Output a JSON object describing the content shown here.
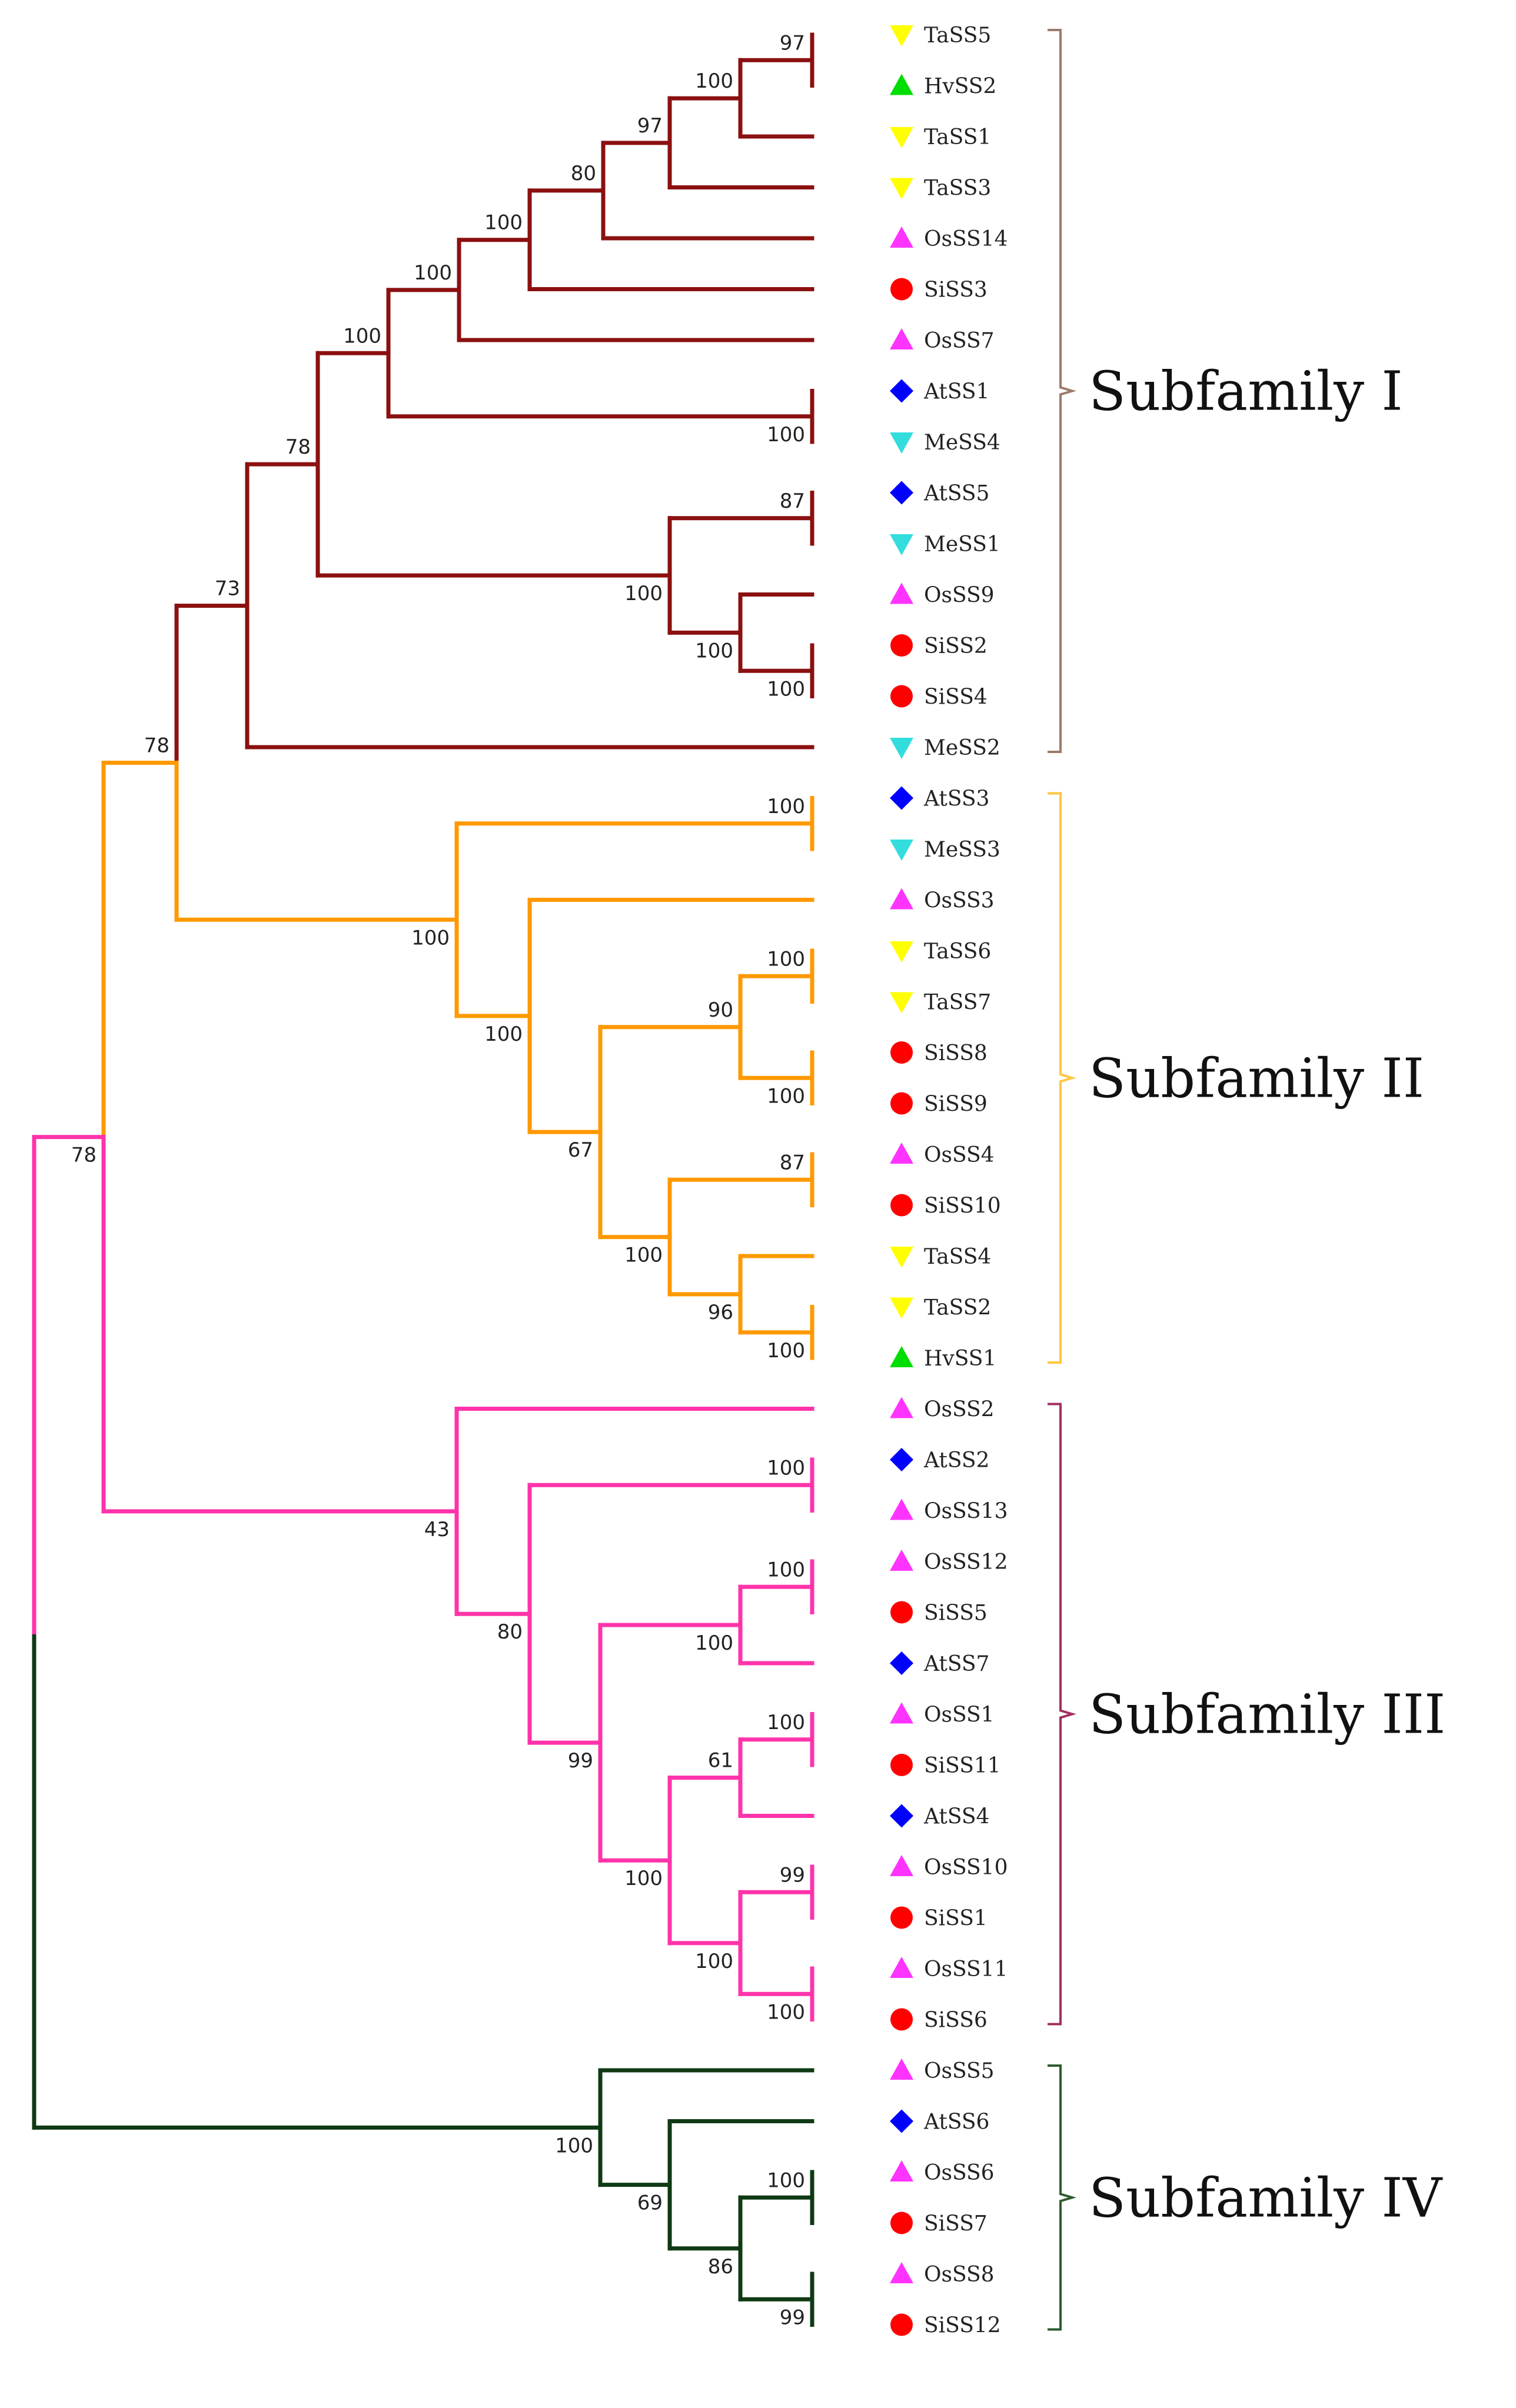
{
  "colors": {
    "subfamily_I": "#8b1010",
    "subfamily_II": "#ff9900",
    "subfamily_III": "#ff33aa",
    "subfamily_IV": "#0f3a14",
    "bracket_I": "#9b7b6b",
    "bracket_II": "#ffc640",
    "bracket_III": "#a03060",
    "bracket_IV": "#2f5a2f",
    "species": {
      "Ta": "#ffff00",
      "Hv": "#00dd00",
      "Os": "#ff33ff",
      "Si": "#ff0000",
      "At": "#0000ff",
      "Me": "#33dddd"
    }
  },
  "species_markers": {
    "Ta": "triangle-down",
    "Hv": "triangle-up",
    "Os": "triangle-up",
    "Si": "circle",
    "At": "diamond",
    "Me": "triangle-down"
  },
  "leaves": [
    {
      "label": "TaSS5",
      "species": "Ta"
    },
    {
      "label": "HvSS2",
      "species": "Hv"
    },
    {
      "label": "TaSS1",
      "species": "Ta"
    },
    {
      "label": "TaSS3",
      "species": "Ta"
    },
    {
      "label": "OsSS14",
      "species": "Os"
    },
    {
      "label": "SiSS3",
      "species": "Si"
    },
    {
      "label": "OsSS7",
      "species": "Os"
    },
    {
      "label": "AtSS1",
      "species": "At"
    },
    {
      "label": "MeSS4",
      "species": "Me"
    },
    {
      "label": "AtSS5",
      "species": "At"
    },
    {
      "label": "MeSS1",
      "species": "Me"
    },
    {
      "label": "OsSS9",
      "species": "Os"
    },
    {
      "label": "SiSS2",
      "species": "Si"
    },
    {
      "label": "SiSS4",
      "species": "Si"
    },
    {
      "label": "MeSS2",
      "species": "Me"
    },
    {
      "label": "AtSS3",
      "species": "At"
    },
    {
      "label": "MeSS3",
      "species": "Me"
    },
    {
      "label": "OsSS3",
      "species": "Os"
    },
    {
      "label": "TaSS6",
      "species": "Ta"
    },
    {
      "label": "TaSS7",
      "species": "Ta"
    },
    {
      "label": "SiSS8",
      "species": "Si"
    },
    {
      "label": "SiSS9",
      "species": "Si"
    },
    {
      "label": "OsSS4",
      "species": "Os"
    },
    {
      "label": "SiSS10",
      "species": "Si"
    },
    {
      "label": "TaSS4",
      "species": "Ta"
    },
    {
      "label": "TaSS2",
      "species": "Ta"
    },
    {
      "label": "HvSS1",
      "species": "Hv"
    },
    {
      "label": "OsSS2",
      "species": "Os"
    },
    {
      "label": "AtSS2",
      "species": "At"
    },
    {
      "label": "OsSS13",
      "species": "Os"
    },
    {
      "label": "OsSS12",
      "species": "Os"
    },
    {
      "label": "SiSS5",
      "species": "Si"
    },
    {
      "label": "AtSS7",
      "species": "At"
    },
    {
      "label": "OsSS1",
      "species": "Os"
    },
    {
      "label": "SiSS11",
      "species": "Si"
    },
    {
      "label": "AtSS4",
      "species": "At"
    },
    {
      "label": "OsSS10",
      "species": "Os"
    },
    {
      "label": "SiSS1",
      "species": "Si"
    },
    {
      "label": "OsSS11",
      "species": "Os"
    },
    {
      "label": "SiSS6",
      "species": "Si"
    },
    {
      "label": "OsSS5",
      "species": "Os"
    },
    {
      "label": "AtSS6",
      "species": "At"
    },
    {
      "label": "OsSS6",
      "species": "Os"
    },
    {
      "label": "SiSS7",
      "species": "Si"
    },
    {
      "label": "OsSS8",
      "species": "Os"
    },
    {
      "label": "SiSS12",
      "species": "Si"
    }
  ],
  "tree": {
    "id": "root",
    "children": [
      {
        "id": "n78a",
        "bootstrap": "78",
        "group": "III",
        "children": [
          {
            "id": "n78b",
            "bootstrap": "78",
            "group": "II",
            "children": [
              {
                "id": "n73",
                "bootstrap": "73",
                "group": "I",
                "children": [
                  {
                    "id": "n78c",
                    "bootstrap": "78",
                    "group": "I",
                    "children": [
                      {
                        "id": "n100a",
                        "bootstrap": "100",
                        "group": "I",
                        "children": [
                          {
                            "id": "n100b",
                            "bootstrap": "100",
                            "group": "I",
                            "children": [
                              {
                                "id": "n100c",
                                "bootstrap": "100",
                                "group": "I",
                                "children": [
                                  {
                                    "id": "n80",
                                    "bootstrap": "80",
                                    "group": "I",
                                    "children": [
                                      {
                                        "id": "n97a",
                                        "bootstrap": "97",
                                        "group": "I",
                                        "children": [
                                          {
                                            "id": "n100d",
                                            "bootstrap": "100",
                                            "group": "I",
                                            "children": [
                                              {
                                                "id": "n97b",
                                                "bootstrap": "97",
                                                "group": "I",
                                                "children": [
                                                  {
                                                    "leaf": 0
                                                  },
                                                  {
                                                    "leaf": 1
                                                  }
                                                ]
                                              },
                                              {
                                                "leaf": 2
                                              }
                                            ]
                                          },
                                          {
                                            "leaf": 3
                                          }
                                        ]
                                      },
                                      {
                                        "leaf": 4
                                      }
                                    ]
                                  },
                                  {
                                    "leaf": 5
                                  }
                                ]
                              },
                              {
                                "leaf": 6
                              }
                            ]
                          },
                          {
                            "id": "n100e",
                            "bootstrap": "100",
                            "group": "I",
                            "children": [
                              {
                                "leaf": 7
                              },
                              {
                                "leaf": 8
                              }
                            ]
                          }
                        ]
                      },
                      {
                        "id": "n100f",
                        "bootstrap": "100",
                        "group": "I",
                        "children": [
                          {
                            "id": "n87a",
                            "bootstrap": "87",
                            "group": "I",
                            "children": [
                              {
                                "leaf": 9
                              },
                              {
                                "leaf": 10
                              }
                            ]
                          },
                          {
                            "id": "n100g",
                            "bootstrap": "100",
                            "group": "I",
                            "children": [
                              {
                                "leaf": 11
                              },
                              {
                                "id": "n100h",
                                "bootstrap": "100",
                                "group": "I",
                                "children": [
                                  {
                                    "leaf": 12
                                  },
                                  {
                                    "leaf": 13
                                  }
                                ]
                              }
                            ]
                          }
                        ]
                      }
                    ]
                  },
                  {
                    "leaf": 14
                  }
                ]
              },
              {
                "id": "n100i",
                "bootstrap": "100",
                "group": "II",
                "children": [
                  {
                    "id": "n100j",
                    "bootstrap": "100",
                    "group": "II",
                    "children": [
                      {
                        "leaf": 15
                      },
                      {
                        "leaf": 16
                      }
                    ]
                  },
                  {
                    "id": "n100k",
                    "bootstrap": "100",
                    "group": "II",
                    "children": [
                      {
                        "leaf": 17
                      },
                      {
                        "id": "n67",
                        "bootstrap": "67",
                        "group": "II",
                        "children": [
                          {
                            "id": "n90",
                            "bootstrap": "90",
                            "group": "II",
                            "children": [
                              {
                                "id": "n100l",
                                "bootstrap": "100",
                                "group": "II",
                                "children": [
                                  {
                                    "leaf": 18
                                  },
                                  {
                                    "leaf": 19
                                  }
                                ]
                              },
                              {
                                "id": "n100m",
                                "bootstrap": "100",
                                "group": "II",
                                "children": [
                                  {
                                    "leaf": 20
                                  },
                                  {
                                    "leaf": 21
                                  }
                                ]
                              }
                            ]
                          },
                          {
                            "id": "n100n",
                            "bootstrap": "100",
                            "group": "II",
                            "children": [
                              {
                                "id": "n87b",
                                "bootstrap": "87",
                                "group": "II",
                                "children": [
                                  {
                                    "leaf": 22
                                  },
                                  {
                                    "leaf": 23
                                  }
                                ]
                              },
                              {
                                "id": "n96",
                                "bootstrap": "96",
                                "group": "II",
                                "children": [
                                  {
                                    "leaf": 24
                                  },
                                  {
                                    "id": "n100o",
                                    "bootstrap": "100",
                                    "group": "II",
                                    "children": [
                                      {
                                        "leaf": 25
                                      },
                                      {
                                        "leaf": 26
                                      }
                                    ]
                                  }
                                ]
                              }
                            ]
                          }
                        ]
                      }
                    ]
                  }
                ]
              }
            ]
          },
          {
            "id": "n43",
            "bootstrap": "43",
            "group": "III",
            "children": [
              {
                "leaf": 27
              },
              {
                "id": "n80b",
                "bootstrap": "80",
                "group": "III",
                "children": [
                  {
                    "id": "n100p",
                    "bootstrap": "100",
                    "group": "III",
                    "children": [
                      {
                        "leaf": 28
                      },
                      {
                        "leaf": 29
                      }
                    ]
                  },
                  {
                    "id": "n99a",
                    "bootstrap": "99",
                    "group": "III",
                    "children": [
                      {
                        "id": "n100q",
                        "bootstrap": "100",
                        "group": "III",
                        "children": [
                          {
                            "id": "n100r",
                            "bootstrap": "100",
                            "group": "III",
                            "children": [
                              {
                                "leaf": 30
                              },
                              {
                                "leaf": 31
                              }
                            ]
                          },
                          {
                            "leaf": 32
                          }
                        ]
                      },
                      {
                        "id": "n100s",
                        "bootstrap": "100",
                        "group": "III",
                        "children": [
                          {
                            "id": "n61",
                            "bootstrap": "61",
                            "group": "III",
                            "children": [
                              {
                                "id": "n100t",
                                "bootstrap": "100",
                                "group": "III",
                                "children": [
                                  {
                                    "leaf": 33
                                  },
                                  {
                                    "leaf": 34
                                  }
                                ]
                              },
                              {
                                "leaf": 35
                              }
                            ]
                          },
                          {
                            "id": "n100u",
                            "bootstrap": "100",
                            "group": "III",
                            "children": [
                              {
                                "id": "n99b",
                                "bootstrap": "99",
                                "group": "III",
                                "children": [
                                  {
                                    "leaf": 36
                                  },
                                  {
                                    "leaf": 37
                                  }
                                ]
                              },
                              {
                                "id": "n100v",
                                "bootstrap": "100",
                                "group": "III",
                                "children": [
                                  {
                                    "leaf": 38
                                  },
                                  {
                                    "leaf": 39
                                  }
                                ]
                              }
                            ]
                          }
                        ]
                      }
                    ]
                  }
                ]
              }
            ]
          }
        ]
      },
      {
        "id": "n100w",
        "bootstrap": "100",
        "group": "IV",
        "children": [
          {
            "leaf": 40
          },
          {
            "id": "n69",
            "bootstrap": "69",
            "group": "IV",
            "children": [
              {
                "leaf": 41
              },
              {
                "id": "n86",
                "bootstrap": "86",
                "group": "IV",
                "children": [
                  {
                    "id": "n100x",
                    "bootstrap": "100",
                    "group": "IV",
                    "children": [
                      {
                        "leaf": 42
                      },
                      {
                        "leaf": 43
                      }
                    ]
                  },
                  {
                    "id": "n99c",
                    "bootstrap": "99",
                    "group": "IV",
                    "children": [
                      {
                        "leaf": 44
                      },
                      {
                        "leaf": 45
                      }
                    ]
                  }
                ]
              }
            ]
          }
        ]
      }
    ]
  },
  "subfamilies": [
    {
      "id": "I",
      "label": "Subfamily I",
      "first_leaf": 0,
      "last_leaf": 14
    },
    {
      "id": "II",
      "label": "Subfamily II",
      "first_leaf": 15,
      "last_leaf": 26
    },
    {
      "id": "III",
      "label": "Subfamily III",
      "first_leaf": 27,
      "last_leaf": 39
    },
    {
      "id": "IV",
      "label": "Subfamily IV",
      "first_leaf": 40,
      "last_leaf": 45
    }
  ]
}
